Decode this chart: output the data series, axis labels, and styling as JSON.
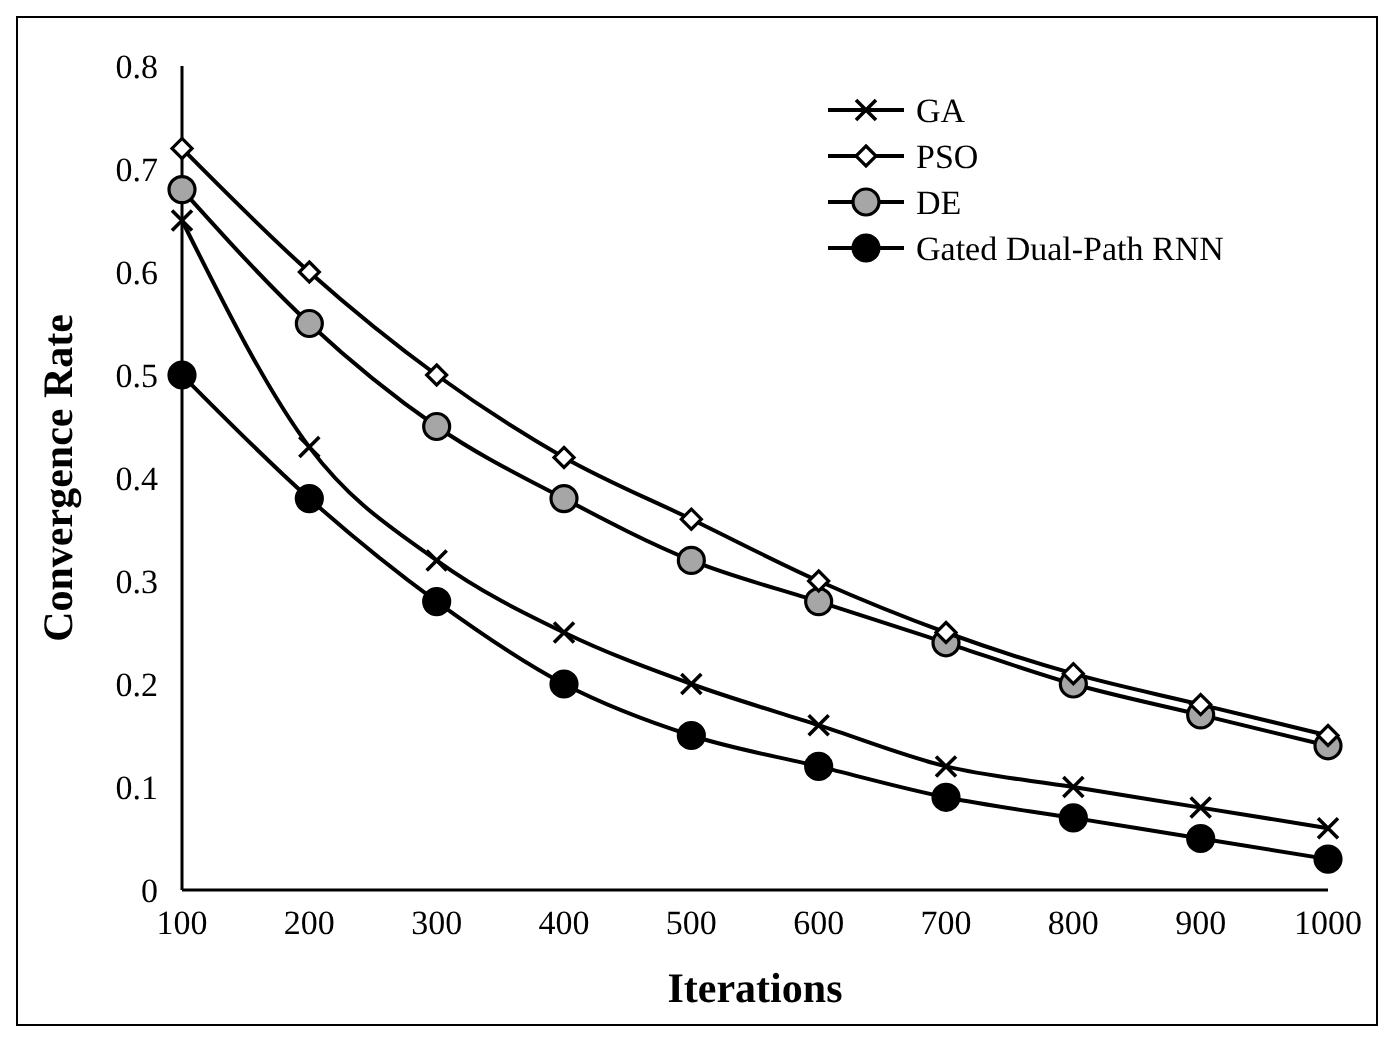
{
  "chart_data": {
    "type": "line",
    "xlabel": "Iterations",
    "ylabel": "Convergence Rate",
    "x": [
      100,
      200,
      300,
      400,
      500,
      600,
      700,
      800,
      900,
      1000
    ],
    "xlim": [
      100,
      1000
    ],
    "xticks": [
      100,
      200,
      300,
      400,
      500,
      600,
      700,
      800,
      900,
      1000
    ],
    "ylim": [
      0,
      0.8
    ],
    "yticks": [
      0,
      0.1,
      0.2,
      0.3,
      0.4,
      0.5,
      0.6,
      0.7,
      0.8
    ],
    "grid": false,
    "legend": "top right",
    "line_style": "solid",
    "series": [
      {
        "name": "GA",
        "color": "#000000",
        "marker": "cross",
        "values": [
          0.65,
          0.43,
          0.32,
          0.25,
          0.2,
          0.16,
          0.12,
          0.1,
          0.08,
          0.06
        ]
      },
      {
        "name": "PSO",
        "color": "#ffffff",
        "marker": "diamond",
        "values": [
          0.72,
          0.6,
          0.5,
          0.42,
          0.36,
          0.3,
          0.25,
          0.21,
          0.18,
          0.15
        ]
      },
      {
        "name": "DE",
        "color": "#a6a6a6",
        "marker": "circle",
        "values": [
          0.68,
          0.55,
          0.45,
          0.38,
          0.32,
          0.28,
          0.24,
          0.2,
          0.17,
          0.14
        ]
      },
      {
        "name": "Gated Dual-Path RNN",
        "color": "#000000",
        "marker": "circle",
        "values": [
          0.5,
          0.38,
          0.28,
          0.2,
          0.15,
          0.12,
          0.09,
          0.07,
          0.05,
          0.03
        ]
      }
    ]
  }
}
